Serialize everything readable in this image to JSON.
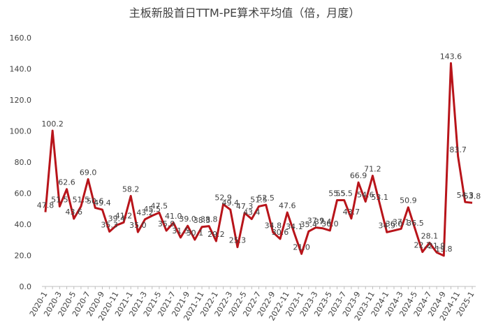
{
  "chart_data": {
    "type": "line",
    "title": "主板新股首日TTM-PE算术平均值（倍，月度）",
    "categories": [
      "2020-1",
      null,
      "2020-3",
      null,
      "2020-5",
      null,
      "2020-7",
      null,
      "2020-9",
      null,
      "2020-11",
      null,
      "2021-1",
      null,
      "2021-3",
      null,
      "2021-5",
      null,
      "2021-7",
      null,
      "2021-9",
      null,
      "2021-11",
      null,
      "2022-1",
      null,
      "2022-3",
      null,
      "2022-5",
      null,
      "2022-7",
      null,
      "2022-9",
      null,
      "2022-11",
      null,
      "2023-1",
      null,
      "2023-3",
      null,
      "2023-5",
      null,
      "2023-7",
      null,
      "2023-9",
      null,
      "2023-11",
      null,
      "2024-1",
      null,
      "2024-3",
      null,
      "2024-5",
      null,
      "2024-7",
      null,
      "2024-9",
      null,
      "2024-11",
      null,
      "2025-1"
    ],
    "series": [
      {
        "color": "#b8141a",
        "values": [
          47.8,
          100.2,
          51.5,
          62.6,
          43.6,
          51.5,
          69.0,
          50.6,
          49.4,
          35.3,
          39.4,
          41.2,
          58.2,
          35.0,
          43.2,
          45.5,
          47.5,
          35.9,
          41.0,
          31.5,
          39.0,
          30.1,
          38.3,
          38.8,
          29.2,
          52.9,
          49.4,
          25.3,
          47.3,
          43.4,
          51.5,
          52.5,
          34.8,
          30.6,
          47.6,
          34.1,
          21.0,
          35.4,
          37.9,
          37.4,
          36.0,
          55.5,
          55.5,
          43.7,
          66.9,
          54.6,
          71.2,
          53.1,
          34.9,
          36.0,
          37.1,
          50.9,
          36.5,
          22.2,
          28.1,
          21.9,
          19.8,
          143.6,
          83.7,
          54.3,
          53.8
        ],
        "value_labels": [
          "47.8",
          "100.2",
          "51.5",
          "62.6",
          "43.6",
          "51.5",
          "69.0",
          "50.6",
          "49.4",
          "35.3",
          "39.4",
          "41.2",
          "58.2",
          "35.0",
          "43.2",
          "45.5",
          "47.5",
          "35.9",
          "41.0",
          "31.5",
          "39.0",
          "30.1",
          "38.3",
          "38.8",
          "29.2",
          "52.9",
          "49.4",
          "25.3",
          "47.3",
          "43.4",
          "51.5",
          "52.5",
          "34.8",
          "30.6",
          "47.6",
          "34.1",
          "21.0",
          "35.4",
          "37.9",
          "37.4",
          "36.0",
          "55.5",
          "55.5",
          "43.7",
          "66.9",
          "54.6",
          "71.2",
          "53.1",
          "34.9",
          "36.0",
          "37.1",
          "50.9",
          "36.5",
          "22.2",
          "28.1",
          "21.9",
          "19.8",
          "143.6",
          "83.7",
          "54.3",
          "53.8"
        ]
      }
    ],
    "ylim": [
      0,
      160
    ],
    "yticks": [
      {
        "value": 0,
        "label": "0.0"
      },
      {
        "value": 20,
        "label": "20.0"
      },
      {
        "value": 40,
        "label": "40.0"
      },
      {
        "value": 60,
        "label": "60.0"
      },
      {
        "value": 80,
        "label": "80.0"
      },
      {
        "value": 100,
        "label": "100.0"
      },
      {
        "value": 120,
        "label": "120.0"
      },
      {
        "value": 140,
        "label": "140.0"
      },
      {
        "value": 160,
        "label": "160.0"
      }
    ]
  }
}
